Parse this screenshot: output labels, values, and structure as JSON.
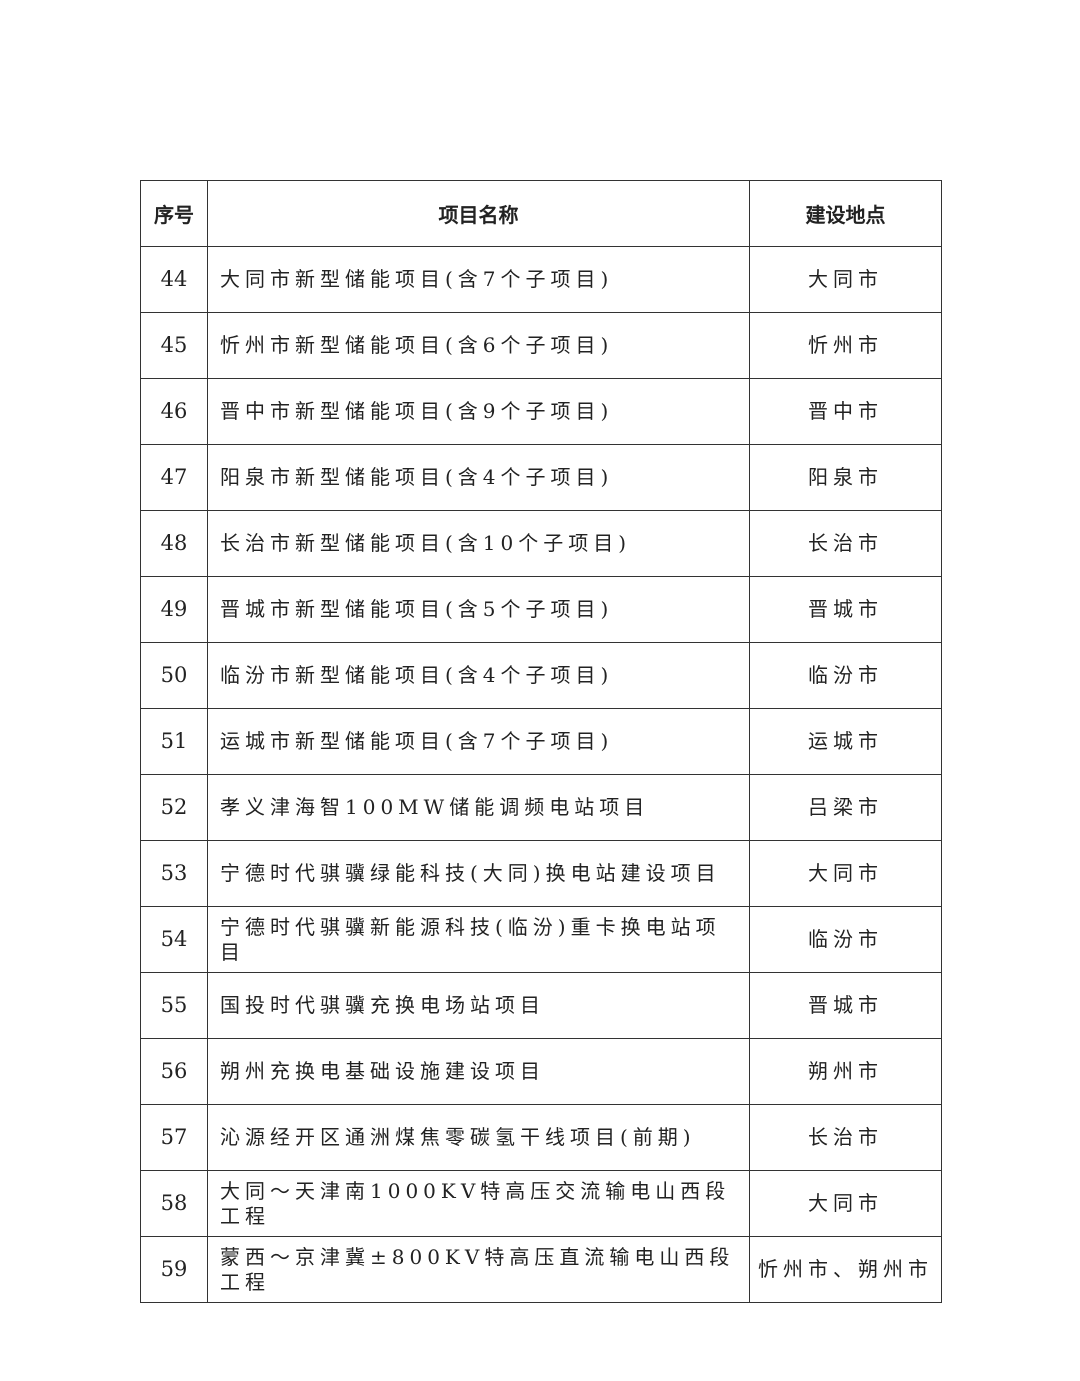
{
  "table": {
    "headers": [
      "序号",
      "项目名称",
      "建设地点"
    ],
    "rows": [
      {
        "no": "44",
        "name": "大同市新型储能项目(含7个子项目)",
        "location": "大同市"
      },
      {
        "no": "45",
        "name": "忻州市新型储能项目(含6个子项目)",
        "location": "忻州市"
      },
      {
        "no": "46",
        "name": "晋中市新型储能项目(含9个子项目)",
        "location": "晋中市"
      },
      {
        "no": "47",
        "name": "阳泉市新型储能项目(含4个子项目)",
        "location": "阳泉市"
      },
      {
        "no": "48",
        "name": "长治市新型储能项目(含10个子项目)",
        "location": "长治市"
      },
      {
        "no": "49",
        "name": "晋城市新型储能项目(含5个子项目)",
        "location": "晋城市"
      },
      {
        "no": "50",
        "name": "临汾市新型储能项目(含4个子项目)",
        "location": "临汾市"
      },
      {
        "no": "51",
        "name": "运城市新型储能项目(含7个子项目)",
        "location": "运城市"
      },
      {
        "no": "52",
        "name": "孝义津海智100MW储能调频电站项目",
        "location": "吕梁市"
      },
      {
        "no": "53",
        "name": "宁德时代骐骥绿能科技(大同)换电站建设项目",
        "location": "大同市"
      },
      {
        "no": "54",
        "name": "宁德时代骐骥新能源科技(临汾)重卡换电站项目",
        "location": "临汾市"
      },
      {
        "no": "55",
        "name": "国投时代骐骥充换电场站项目",
        "location": "晋城市"
      },
      {
        "no": "56",
        "name": "朔州充换电基础设施建设项目",
        "location": "朔州市"
      },
      {
        "no": "57",
        "name": "沁源经开区通洲煤焦零碳氢干线项目(前期)",
        "location": "长治市"
      },
      {
        "no": "58",
        "name": "大同～天津南1000KV特高压交流输电山西段工程",
        "location": "大同市"
      },
      {
        "no": "59",
        "name": "蒙西～京津冀±800KV特高压直流输电山西段工程",
        "location": "忻州市、朔州市"
      }
    ]
  }
}
